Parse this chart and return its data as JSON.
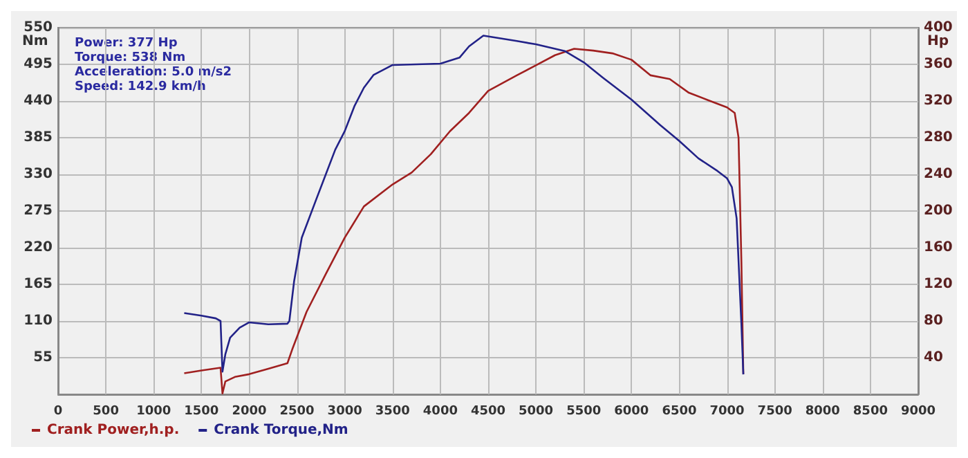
{
  "chart_data": {
    "type": "line",
    "ylabel": "Nm",
    "y2label": "Hp",
    "annotations": [
      "Power: 377 Hp",
      "Torque: 538 Nm",
      "Acceleration: 5.0 m/s2",
      "Speed: 142.9 km/h"
    ],
    "xlim": [
      0,
      9000
    ],
    "xticks": [
      0,
      500,
      1000,
      1500,
      2000,
      2500,
      3000,
      3500,
      4000,
      4500,
      5000,
      5500,
      6000,
      6500,
      7000,
      7500,
      8000,
      8500,
      9000
    ],
    "ylim": [
      0,
      550
    ],
    "yticks": [
      55,
      110,
      165,
      220,
      275,
      330,
      385,
      440,
      495,
      550
    ],
    "y2lim": [
      0,
      400
    ],
    "y2ticks": [
      40,
      80,
      120,
      160,
      200,
      240,
      280,
      320,
      360,
      400
    ],
    "grid": true,
    "legend": "bottom left",
    "marker": "none",
    "line_style": "solid",
    "series": [
      {
        "name": "Crank Power,h.p.",
        "color": "#a02020",
        "axis": "y2",
        "x": [
          1320,
          1500,
          1700,
          1720,
          1750,
          1850,
          2000,
          2200,
          2400,
          2450,
          2600,
          2800,
          3000,
          3200,
          3500,
          3700,
          3900,
          4100,
          4300,
          4500,
          4800,
          5000,
          5200,
          5400,
          5600,
          5800,
          6000,
          6200,
          6400,
          6600,
          6800,
          7000,
          7080,
          7120,
          7150,
          7170
        ],
        "values": [
          23,
          26,
          29,
          1,
          14,
          19,
          22,
          28,
          34,
          49,
          90,
          131,
          171,
          205,
          229,
          242,
          262,
          287,
          307,
          331,
          348,
          359,
          370,
          377,
          375,
          372,
          365,
          348,
          344,
          329,
          321,
          313,
          307,
          280,
          144,
          22
        ]
      },
      {
        "name": "Crank Torque,Nm",
        "color": "#222288",
        "x": [
          1320,
          1500,
          1650,
          1700,
          1720,
          1750,
          1800,
          1900,
          2000,
          2200,
          2400,
          2420,
          2470,
          2550,
          2700,
          2900,
          3000,
          3100,
          3200,
          3300,
          3500,
          4000,
          4200,
          4300,
          4450,
          4800,
          5000,
          5300,
          5500,
          5700,
          6000,
          6300,
          6500,
          6700,
          6900,
          7000,
          7050,
          7100,
          7150,
          7170
        ],
        "values": [
          122,
          118,
          114,
          110,
          34,
          60,
          85,
          100,
          108,
          105,
          106,
          110,
          170,
          235,
          292,
          367,
          395,
          432,
          460,
          479,
          494,
          496,
          505,
          522,
          538,
          530,
          525,
          515,
          498,
          475,
          442,
          404,
          380,
          354,
          335,
          324,
          311,
          264,
          105,
          30
        ]
      }
    ]
  }
}
